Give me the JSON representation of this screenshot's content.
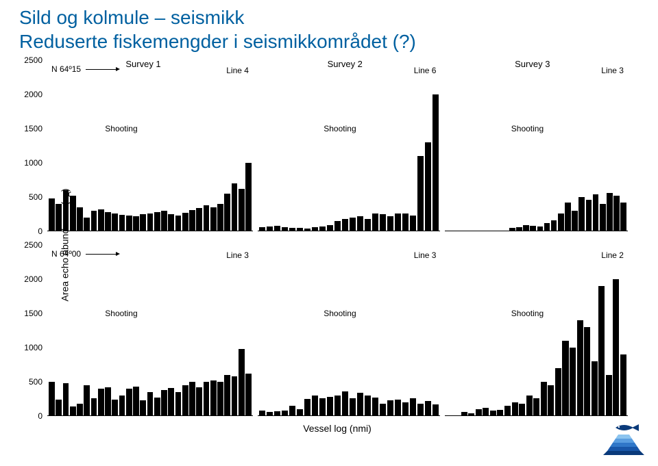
{
  "title": {
    "line1": "Sild og kolmule – seismikk",
    "line2": "Reduserte fiskemengder i seismikkområdet (?)",
    "color": "#0060a0",
    "fontsize": 28
  },
  "chart": {
    "type": "bar",
    "ylabel": "Area echo abundance (sA)",
    "xlabel": "Vessel log (nmi)",
    "ylim": [
      0,
      2500
    ],
    "ytick_step": 500,
    "yticks": [
      "0",
      "500",
      "1000",
      "1500",
      "2000",
      "2500"
    ],
    "bar_color": "#000000",
    "background_color": "#ffffff",
    "panels_per_row": 3,
    "panel_widths": [
      0.36,
      0.32,
      0.32
    ],
    "rows": [
      {
        "transect": "N 64º15",
        "survey_labels": [
          "Survey 1",
          "Survey 2",
          "Survey 3"
        ],
        "shooting_label": "Shooting",
        "shooting_y": 1500,
        "panels": [
          {
            "line_label": "Line 4",
            "values": [
              480,
              400,
              600,
              520,
              350,
              200,
              300,
              320,
              280,
              260,
              240,
              230,
              220,
              250,
              260,
              280,
              300,
              250,
              230,
              270,
              310,
              340,
              380,
              350,
              400,
              550,
              700,
              620,
              1000
            ]
          },
          {
            "line_label": "Line 6",
            "values": [
              60,
              70,
              80,
              60,
              50,
              55,
              45,
              60,
              70,
              90,
              150,
              180,
              200,
              220,
              180,
              260,
              250,
              220,
              260,
              260,
              230,
              1100,
              1300,
              2000
            ]
          },
          {
            "line_label": "Line 3",
            "values": [
              0,
              0,
              0,
              0,
              0,
              0,
              0,
              0,
              0,
              50,
              60,
              90,
              80,
              70,
              120,
              160,
              260,
              420,
              300,
              500,
              460,
              540,
              400,
              560,
              520,
              420
            ]
          }
        ]
      },
      {
        "transect": "N 64º00",
        "survey_labels": [
          "",
          "",
          ""
        ],
        "shooting_label": "Shooting",
        "shooting_y": 1500,
        "panels": [
          {
            "line_label": "Line 3",
            "values": [
              500,
              240,
              480,
              140,
              180,
              450,
              260,
              400,
              420,
              240,
              300,
              400,
              430,
              230,
              350,
              270,
              380,
              410,
              350,
              450,
              500,
              420,
              500,
              520,
              500,
              600,
              580,
              980,
              620
            ]
          },
          {
            "line_label": "Line 3",
            "values": [
              80,
              60,
              70,
              80,
              150,
              100,
              250,
              300,
              260,
              280,
              300,
              360,
              260,
              340,
              300,
              270,
              180,
              230,
              240,
              200,
              260,
              180,
              220,
              170
            ]
          },
          {
            "line_label": "Line 2",
            "values": [
              0,
              0,
              60,
              40,
              100,
              120,
              80,
              90,
              150,
              200,
              180,
              300,
              260,
              500,
              450,
              700,
              1100,
              1000,
              1400,
              1300,
              800,
              1900,
              600,
              2000,
              900
            ]
          }
        ]
      }
    ]
  },
  "logo": {
    "stripes": [
      "#0a3a7a",
      "#1856a8",
      "#3077c8",
      "#5a9ee0",
      "#8cc4ef"
    ],
    "fish_color": "#0a3a7a"
  }
}
